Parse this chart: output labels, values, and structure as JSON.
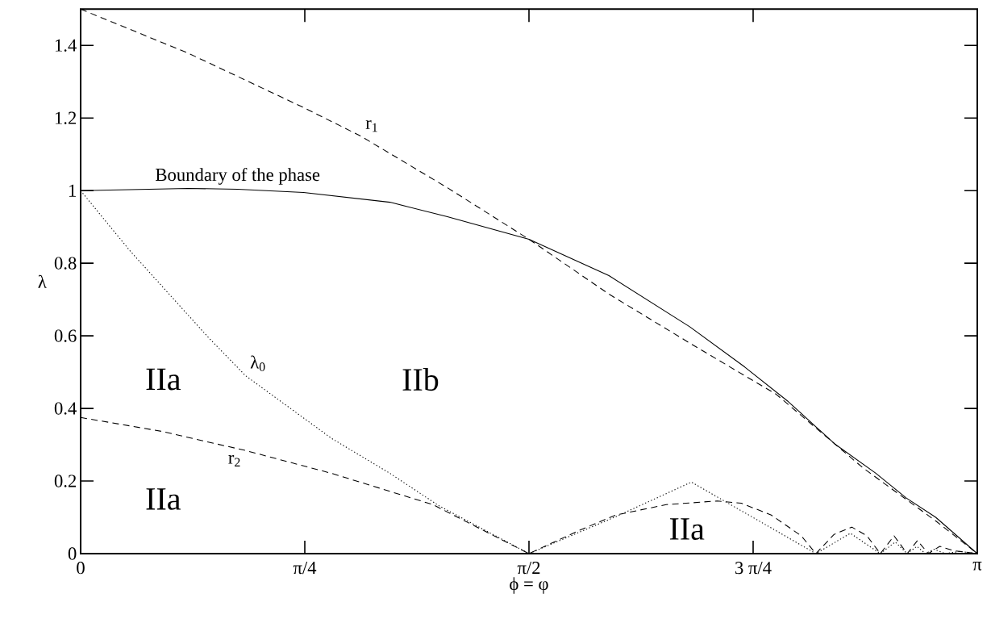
{
  "chart_data": {
    "type": "line",
    "xlabel": "ϕ = φ",
    "ylabel": "λ",
    "xlim": [
      0,
      3.1416
    ],
    "ylim": [
      0,
      1.5
    ],
    "xticks": [
      0,
      {
        "value": 0.7854,
        "label": "π/4"
      },
      {
        "value": 1.5708,
        "label": "π/2"
      },
      {
        "value": 2.3562,
        "label": "3 π/4"
      },
      {
        "value": 3.1416,
        "label": "π"
      }
    ],
    "yticks": [
      0,
      0.2,
      0.4,
      0.6,
      0.8,
      1,
      1.2,
      1.4
    ],
    "grid": false,
    "legend": false,
    "marker": "none",
    "series": [
      {
        "name": "Boundary of the phase",
        "color": "#000000",
        "line_style": "solid",
        "x": [
          0,
          0.376,
          0.55,
          0.781,
          1.084,
          1.285,
          1.5708,
          1.851,
          2.134,
          2.327,
          2.479,
          2.641,
          2.785,
          2.893,
          2.996,
          3.1416
        ],
        "values": [
          1.0,
          1.006,
          1.004,
          0.995,
          0.968,
          0.928,
          0.866,
          0.766,
          0.625,
          0.514,
          0.419,
          0.303,
          0.222,
          0.153,
          0.1,
          0
        ]
      },
      {
        "name": "r$_{1}$",
        "color": "#000000",
        "line_style": "dashed",
        "x": [
          0,
          0.376,
          0.781,
          0.982,
          1.285,
          1.5708,
          1.851,
          2.134,
          2.437,
          2.743,
          2.996,
          3.1416
        ],
        "values": [
          1.5,
          1.379,
          1.229,
          1.15,
          1.008,
          0.866,
          0.715,
          0.58,
          0.439,
          0.235,
          0.09,
          0
        ]
      },
      {
        "name": "λ$_{0}$",
        "color": "#000000",
        "line_style": "dotted",
        "x": [
          0,
          0.172,
          0.447,
          0.578,
          0.88,
          1.084,
          1.257,
          1.5708,
          1.87,
          2.14,
          2.576,
          2.697,
          2.802,
          2.854,
          2.896,
          2.93,
          2.96,
          2.99,
          3.03,
          3.08,
          3.1416
        ],
        "values": [
          1.0,
          0.835,
          0.596,
          0.49,
          0.317,
          0.221,
          0.131,
          0,
          0.1,
          0.197,
          0,
          0.056,
          0,
          0.032,
          0,
          0.02,
          0,
          0.012,
          0,
          0.006,
          0
        ]
      },
      {
        "name": "r$_{2}$",
        "color": "#000000",
        "line_style": "dashed",
        "x": [
          0,
          0.283,
          0.578,
          0.88,
          1.234,
          1.5708,
          1.75,
          1.874,
          2.052,
          2.23,
          2.315,
          2.42,
          2.525,
          2.576,
          2.64,
          2.702,
          2.755,
          2.802,
          2.85,
          2.896,
          2.932,
          2.97,
          3.01,
          3.06,
          3.1416
        ],
        "values": [
          0.375,
          0.337,
          0.284,
          0.221,
          0.135,
          0,
          0.065,
          0.106,
          0.135,
          0.145,
          0.139,
          0.106,
          0.049,
          0,
          0.053,
          0.073,
          0.049,
          0,
          0.049,
          0,
          0.036,
          0,
          0.02,
          0.008,
          0
        ]
      }
    ],
    "annotations": [
      "IIa",
      "IIb",
      "IIa",
      "IIa"
    ]
  }
}
